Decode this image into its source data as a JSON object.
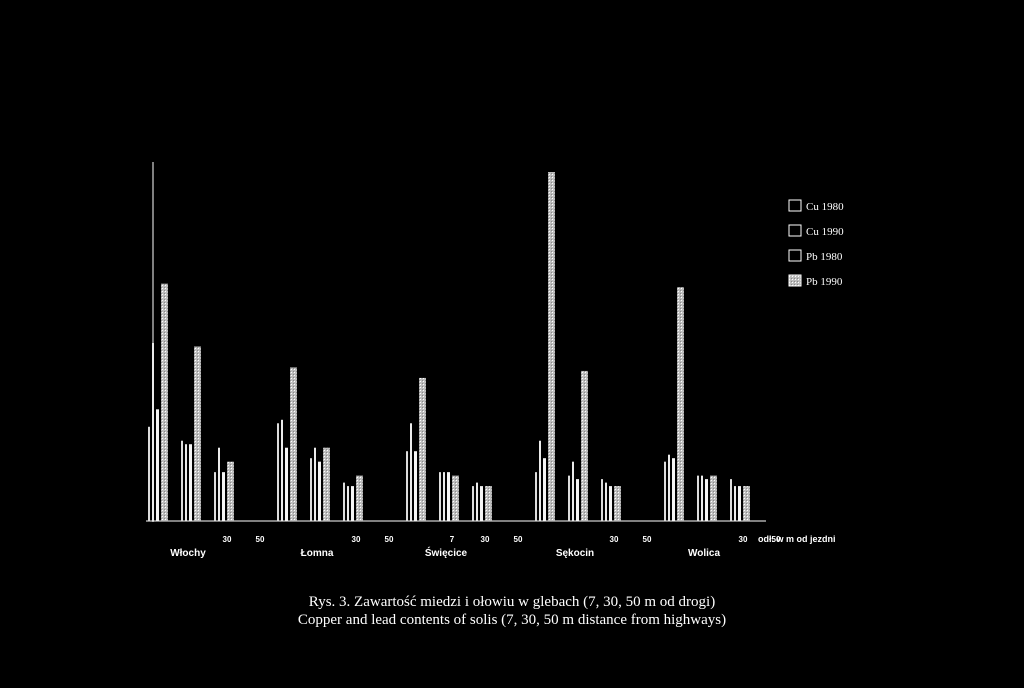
{
  "chart_data": {
    "type": "bar",
    "title": "",
    "xlabel": "odł. w m od jezdni",
    "ylabel": "",
    "ylim": [
      0,
      100
    ],
    "distances": [
      "7",
      "30",
      "50"
    ],
    "groups": [
      {
        "name": "Włochy",
        "tick_labels": [
          "",
          "30",
          "50"
        ]
      },
      {
        "name": "Łomna",
        "tick_labels": [
          "",
          "30",
          "50"
        ]
      },
      {
        "name": "Święcice",
        "tick_labels": [
          "7",
          "30",
          "50"
        ]
      },
      {
        "name": "Sękocin",
        "tick_labels": [
          "",
          "30",
          "50"
        ]
      },
      {
        "name": "Wolica",
        "tick_labels": [
          "",
          "30",
          "50"
        ]
      }
    ],
    "series": [
      {
        "name": "Cu 1980",
        "values": [
          [
            27,
            23,
            14
          ],
          [
            28,
            18,
            11
          ],
          [
            20,
            14,
            10
          ],
          [
            14,
            13,
            12
          ],
          [
            17,
            13,
            12
          ]
        ]
      },
      {
        "name": "Cu 1990",
        "values": [
          [
            51,
            22,
            21
          ],
          [
            29,
            21,
            10
          ],
          [
            28,
            14,
            11
          ],
          [
            23,
            17,
            11
          ],
          [
            19,
            13,
            10
          ]
        ]
      },
      {
        "name": "Pb 1980",
        "values": [
          [
            32,
            22,
            14
          ],
          [
            21,
            17,
            10
          ],
          [
            20,
            14,
            10
          ],
          [
            18,
            12,
            10
          ],
          [
            18,
            12,
            10
          ]
        ]
      },
      {
        "name": "Pb 1990",
        "values": [
          [
            68,
            50,
            17
          ],
          [
            44,
            21,
            13
          ],
          [
            41,
            13,
            10
          ],
          [
            100,
            43,
            10
          ],
          [
            67,
            13,
            10
          ]
        ]
      }
    ],
    "colors": {
      "background": "#000000",
      "axis": "#ffffff",
      "Cu 1980": "#dcdcdc",
      "Cu 1990": "#ebebeb",
      "Pb 1980": "#f5f5f5",
      "Pb 1990": "#c8c8c8"
    },
    "legend_position": "top-right",
    "grid": false
  },
  "caption": {
    "line1": "Rys. 3. Zawartość miedzi i ołowiu w glebach (7, 30, 50 m od drogi)",
    "line2": "Copper and lead contents of solis (7, 30, 50 m distance from highways)"
  }
}
